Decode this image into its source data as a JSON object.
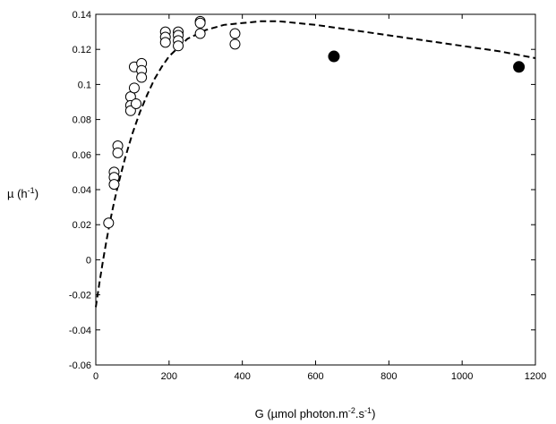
{
  "chart_data": {
    "type": "scatter",
    "title": "",
    "xlabel": {
      "prefix": "G (µmol photon.m",
      "sup1": "-2",
      "mid": ".s",
      "sup2": "-1",
      "suffix": ")"
    },
    "ylabel": {
      "prefix": "µ (h",
      "sup": "-1",
      "suffix": ")"
    },
    "xlim": [
      0,
      1200
    ],
    "ylim": [
      -0.06,
      0.14
    ],
    "xticks": [
      0,
      200,
      400,
      600,
      800,
      1000,
      1200
    ],
    "xtick_labels": [
      "0",
      "200",
      "400",
      "600",
      "800",
      "1000",
      "1200"
    ],
    "yticks": [
      -0.06,
      -0.04,
      -0.02,
      0,
      0.02,
      0.04,
      0.06,
      0.08,
      0.1,
      0.12,
      0.14
    ],
    "ytick_labels": [
      "-0.06",
      "-0.04",
      "-0.02",
      "0",
      "0.02",
      "0.04",
      "0.06",
      "0.08",
      "0.1",
      "0.12",
      "0.14"
    ],
    "grid": false,
    "legend": "none",
    "series": [
      {
        "marker": "open-circle",
        "color": "#000000",
        "points": [
          [
            35,
            0.021
          ],
          [
            50,
            0.05
          ],
          [
            50,
            0.047
          ],
          [
            50,
            0.043
          ],
          [
            60,
            0.065
          ],
          [
            60,
            0.061
          ],
          [
            95,
            0.093
          ],
          [
            95,
            0.088
          ],
          [
            95,
            0.085
          ],
          [
            105,
            0.11
          ],
          [
            105,
            0.098
          ],
          [
            110,
            0.089
          ],
          [
            125,
            0.112
          ],
          [
            125,
            0.108
          ],
          [
            125,
            0.104
          ],
          [
            190,
            0.13
          ],
          [
            190,
            0.127
          ],
          [
            190,
            0.124
          ],
          [
            225,
            0.13
          ],
          [
            225,
            0.128
          ],
          [
            225,
            0.125
          ],
          [
            225,
            0.122
          ],
          [
            285,
            0.136
          ],
          [
            285,
            0.135
          ],
          [
            285,
            0.129
          ],
          [
            380,
            0.129
          ],
          [
            380,
            0.123
          ]
        ]
      },
      {
        "marker": "filled-circle",
        "color": "#000000",
        "points": [
          [
            650,
            0.116
          ],
          [
            1155,
            0.11
          ]
        ]
      },
      {
        "type": "line",
        "style": "dashed",
        "color": "#000000",
        "points": [
          [
            0,
            -0.027
          ],
          [
            10,
            -0.013
          ],
          [
            20,
            0.0
          ],
          [
            30,
            0.012
          ],
          [
            40,
            0.023
          ],
          [
            50,
            0.033
          ],
          [
            60,
            0.042
          ],
          [
            70,
            0.05
          ],
          [
            80,
            0.058
          ],
          [
            90,
            0.065
          ],
          [
            100,
            0.072
          ],
          [
            120,
            0.084
          ],
          [
            140,
            0.094
          ],
          [
            160,
            0.103
          ],
          [
            180,
            0.11
          ],
          [
            200,
            0.116
          ],
          [
            250,
            0.126
          ],
          [
            300,
            0.131
          ],
          [
            350,
            0.134
          ],
          [
            400,
            0.135
          ],
          [
            450,
            0.136
          ],
          [
            500,
            0.136
          ],
          [
            550,
            0.135
          ],
          [
            600,
            0.134
          ],
          [
            700,
            0.131
          ],
          [
            800,
            0.128
          ],
          [
            900,
            0.125
          ],
          [
            1000,
            0.122
          ],
          [
            1100,
            0.119
          ],
          [
            1200,
            0.115
          ]
        ]
      }
    ]
  }
}
